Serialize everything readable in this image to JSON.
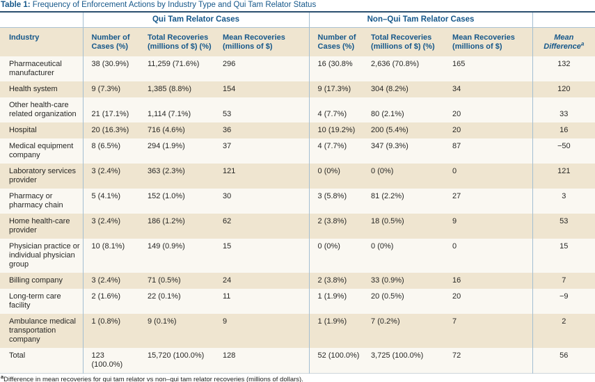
{
  "title": {
    "label": "Table 1:",
    "text": " Frequency of Enforcement Actions by Industry Type and Qui Tam Relator Status"
  },
  "table": {
    "group_headers": {
      "qui_tam": "Qui Tam Relator Cases",
      "non_qui_tam": "Non–Qui Tam Relator Cases"
    },
    "columns": [
      "Industry",
      "Number of Cases (%)",
      "Total Recoveries (millions of $) (%)",
      "Mean Recoveries (millions of $)",
      "Number of Cases (%)",
      "Total Recoveries (millions of $) (%)",
      "Mean Recoveries (millions of $)",
      "Mean Difference"
    ],
    "mean_difference_superscript": "a",
    "rows": [
      {
        "industry": "Pharmaceutical manufacturer",
        "values": [
          "38 (30.9%)",
          "11,259 (71.6%)",
          "296",
          "16 (30.8%",
          "2,636 (70.8%)",
          "165"
        ],
        "mean_difference": "132"
      },
      {
        "industry": "Health system",
        "values": [
          "9 (7.3%)",
          "1,385 (8.8%)",
          "154",
          "9 (17.3%)",
          "304 (8.2%)",
          "34"
        ],
        "mean_difference": "120"
      },
      {
        "industry": "Other health-care related organization",
        "values": [
          "21 (17.1%)",
          "1,114 (7.1%)",
          "53",
          "4 (7.7%)",
          "80 (2.1%)",
          "20"
        ],
        "mean_difference": "33",
        "values_valign": "bottom"
      },
      {
        "industry": "Hospital",
        "values": [
          "20 (16.3%)",
          "716 (4.6%)",
          "36",
          "10 (19.2%)",
          "200 (5.4%)",
          "20"
        ],
        "mean_difference": "16"
      },
      {
        "industry": "Medical equipment company",
        "values": [
          "8 (6.5%)",
          "294 (1.9%)",
          "37",
          "4 (7.7%)",
          "347 (9.3%)",
          "87"
        ],
        "mean_difference": "−50"
      },
      {
        "industry": "Laboratory services provider",
        "values": [
          "3 (2.4%)",
          "363 (2.3%)",
          "121",
          "0 (0%)",
          "0 (0%)",
          "0"
        ],
        "mean_difference": "121"
      },
      {
        "industry": "Pharmacy or pharmacy chain",
        "values": [
          "5 (4.1%)",
          "152 (1.0%)",
          "30",
          "3 (5.8%)",
          "81 (2.2%)",
          "27"
        ],
        "mean_difference": "3"
      },
      {
        "industry": "Home health-care provider",
        "values": [
          "3 (2.4%)",
          "186 (1.2%)",
          "62",
          "2 (3.8%)",
          "18 (0.5%)",
          "9"
        ],
        "mean_difference": "53"
      },
      {
        "industry": "Physician practice or individual physician group",
        "values": [
          "10 (8.1%)",
          "149 (0.9%)",
          "15",
          "0 (0%)",
          "0 (0%)",
          "0"
        ],
        "mean_difference": "15"
      },
      {
        "industry": "Billing company",
        "values": [
          "3 (2.4%)",
          "71 (0.5%)",
          "24",
          "2 (3.8%)",
          "33 (0.9%)",
          "16"
        ],
        "mean_difference": "7"
      },
      {
        "industry": "Long-term care facility",
        "values": [
          "2 (1.6%)",
          "22 (0.1%)",
          "11",
          "1 (1.9%)",
          "20 (0.5%)",
          "20"
        ],
        "mean_difference": "−9"
      },
      {
        "industry": "Ambulance medical transportation company",
        "values": [
          "1 (0.8%)",
          "9 (0.1%)",
          "9",
          "1 (1.9%)",
          "7 (0.2%)",
          "7"
        ],
        "mean_difference": "2"
      },
      {
        "industry": "Total",
        "values": [
          "123 (100.0%)",
          "15,720 (100.0%)",
          "128",
          "52 (100.0%)",
          "3,725 (100.0%)",
          "72"
        ],
        "mean_difference": "56"
      }
    ],
    "footnote": {
      "superscript": "a",
      "text": "Difference in mean recoveries for qui tam relator vs non–qui tam relator recoveries (millions of dollars)."
    }
  },
  "colors": {
    "heading_navy": "#15578a",
    "row_beige": "#efe5d0",
    "row_cream": "#faf8f2",
    "divider_blue": "#a3bed2",
    "top_rule": "#2b4f6e"
  }
}
